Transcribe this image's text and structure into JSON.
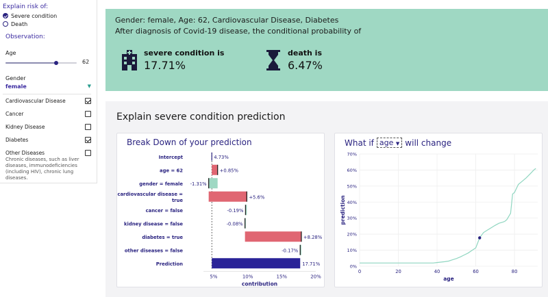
{
  "sidebar": {
    "explain_heading": "Explain risk of:",
    "risk_options": [
      {
        "label": "Severe condition",
        "checked": true
      },
      {
        "label": "Death",
        "checked": false
      }
    ],
    "observation_heading": "Observation:",
    "age_label": "Age",
    "age_value": "62",
    "age_slider_fraction": 0.71,
    "gender_label": "Gender",
    "gender_value": "female",
    "conditions": [
      {
        "label": "Cardiovascular Disease",
        "checked": true
      },
      {
        "label": "Cancer",
        "checked": false
      },
      {
        "label": "Kidney Disease",
        "checked": false
      },
      {
        "label": "Diabetes",
        "checked": true
      },
      {
        "label": "Other Diseases",
        "checked": false
      }
    ],
    "other_note": "Chronic diseases, such as liver diseases, immunodeficiencies (including HIV), chronic lung diseases."
  },
  "header": {
    "line1": "Gender: female, Age: 62, Cardiovascular Disease, Diabetes",
    "line2": "After diagnosis of Covid-19 disease, the conditional probability of",
    "severe": {
      "label": "severe condition is",
      "value": "17.71%",
      "icon": "hospital-icon"
    },
    "death": {
      "label": "death is",
      "value": "6.47%",
      "icon": "hourglass-icon"
    }
  },
  "explain": {
    "title": "Explain severe condition prediction",
    "breakdown_title": "Break Down of your prediction",
    "whatif_prefix": "What if",
    "whatif_variable": "age",
    "whatif_suffix": "will change"
  },
  "chart_data": [
    {
      "type": "bar",
      "title": "Break Down of your prediction",
      "xlabel": "contribution",
      "ylabel": "",
      "xlim": [
        3.5,
        20
      ],
      "xticks": [
        "5%",
        "10%",
        "15%",
        "20%"
      ],
      "xtick_values": [
        5,
        10,
        15,
        20
      ],
      "bars": [
        {
          "label": "Intercept",
          "start": 4.73,
          "end": 4.73,
          "text": "4.73%",
          "kind": "intercept"
        },
        {
          "label": "age = 62",
          "start": 4.73,
          "end": 5.58,
          "text": "+0.85%",
          "kind": "pos"
        },
        {
          "label": "gender = female",
          "start": 5.58,
          "end": 4.27,
          "text": "-1.31%",
          "kind": "neg"
        },
        {
          "label": "cardiovascular disease = true",
          "start": 4.27,
          "end": 9.87,
          "text": "+5.6%",
          "kind": "pos"
        },
        {
          "label": "cancer = false",
          "start": 9.87,
          "end": 9.68,
          "text": "-0.19%",
          "kind": "neg"
        },
        {
          "label": "kidney disease = false",
          "start": 9.68,
          "end": 9.6,
          "text": "-0.08%",
          "kind": "neg"
        },
        {
          "label": "diabetes = true",
          "start": 9.6,
          "end": 17.88,
          "text": "+8.28%",
          "kind": "pos"
        },
        {
          "label": "other diseases = false",
          "start": 17.88,
          "end": 17.71,
          "text": "-0.17%",
          "kind": "neg"
        },
        {
          "label": "Prediction",
          "start": 4.73,
          "end": 17.71,
          "text": "17.71%",
          "kind": "prediction"
        }
      ],
      "colors": {
        "pos": "#e06672",
        "neg": "#9fd8c3",
        "prediction": "#2a2398",
        "intercept": "#2a2380"
      }
    },
    {
      "type": "line",
      "title": "What if age will change",
      "xlabel": "age",
      "ylabel": "prediction",
      "xlim": [
        0,
        92
      ],
      "ylim": [
        0,
        70
      ],
      "xticks": [
        0,
        20,
        40,
        60,
        80
      ],
      "yticks": [
        0,
        10,
        20,
        30,
        40,
        50,
        60,
        70
      ],
      "ytick_labels": [
        "0%",
        "10%",
        "20%",
        "30%",
        "40%",
        "50%",
        "60%",
        "70%"
      ],
      "x": [
        0,
        38,
        40,
        44,
        46,
        48,
        50,
        52,
        54,
        56,
        58,
        60,
        62,
        64,
        66,
        68,
        70,
        72,
        74,
        75,
        76,
        78,
        79,
        80,
        82,
        84,
        86,
        88,
        90,
        91
      ],
      "y": [
        2.0,
        2.0,
        2.3,
        2.8,
        3.2,
        4.0,
        4.8,
        5.8,
        7.0,
        8.2,
        9.8,
        11.5,
        17.71,
        21.0,
        22.5,
        24.0,
        25.5,
        26.8,
        27.5,
        28.0,
        29.0,
        33.0,
        45.0,
        46.0,
        51.0,
        53.0,
        55.0,
        57.5,
        60.0,
        61.0
      ],
      "highlight": {
        "x": 62,
        "y": 17.71
      },
      "color": "#8fd6c0"
    }
  ],
  "colors": {
    "accent": "#2a2380",
    "header_bg": "#9fd8c3",
    "panel_bg": "#f3f3f5"
  }
}
